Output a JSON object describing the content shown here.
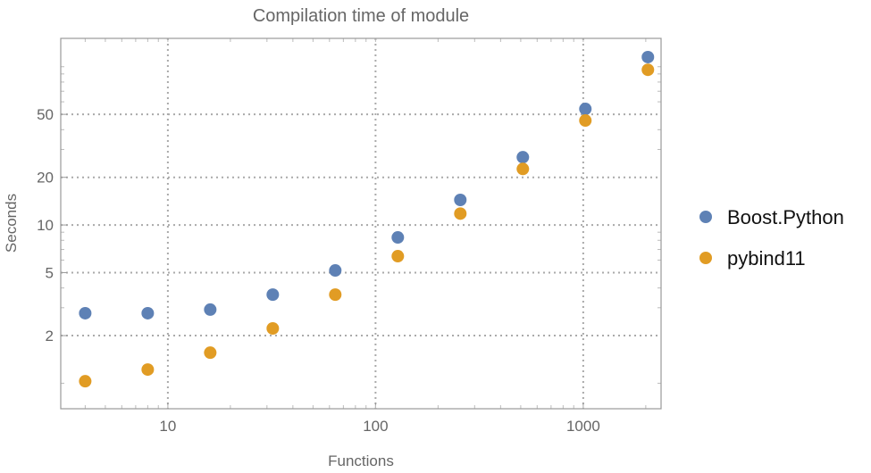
{
  "chart_data": {
    "type": "scatter",
    "title": "Compilation time of module",
    "xlabel": "Functions",
    "ylabel": "Seconds",
    "xscale": "log",
    "yscale": "log",
    "xlim": [
      3.05,
      2370
    ],
    "ylim": [
      0.69,
      151
    ],
    "grid": true,
    "legend_position": "right",
    "x_ticks": [
      {
        "value": 10,
        "label": "10"
      },
      {
        "value": 100,
        "label": "100"
      },
      {
        "value": 1000,
        "label": "1000"
      }
    ],
    "y_ticks": [
      {
        "value": 2,
        "label": "2"
      },
      {
        "value": 5,
        "label": "5"
      },
      {
        "value": 10,
        "label": "10"
      },
      {
        "value": 20,
        "label": "20"
      },
      {
        "value": 50,
        "label": "50"
      }
    ],
    "x": [
      4,
      8,
      16,
      32,
      64,
      128,
      256,
      512,
      1024,
      2048
    ],
    "series": [
      {
        "name": "Boost.Python",
        "color": "#5e81b5",
        "values": [
          2.77,
          2.77,
          2.92,
          3.63,
          5.16,
          8.34,
          14.4,
          26.8,
          54.1,
          115
        ]
      },
      {
        "name": "pybind11",
        "color": "#e19c24",
        "values": [
          1.03,
          1.22,
          1.56,
          2.22,
          3.63,
          6.35,
          11.8,
          22.6,
          45.7,
          95.6
        ]
      }
    ]
  }
}
